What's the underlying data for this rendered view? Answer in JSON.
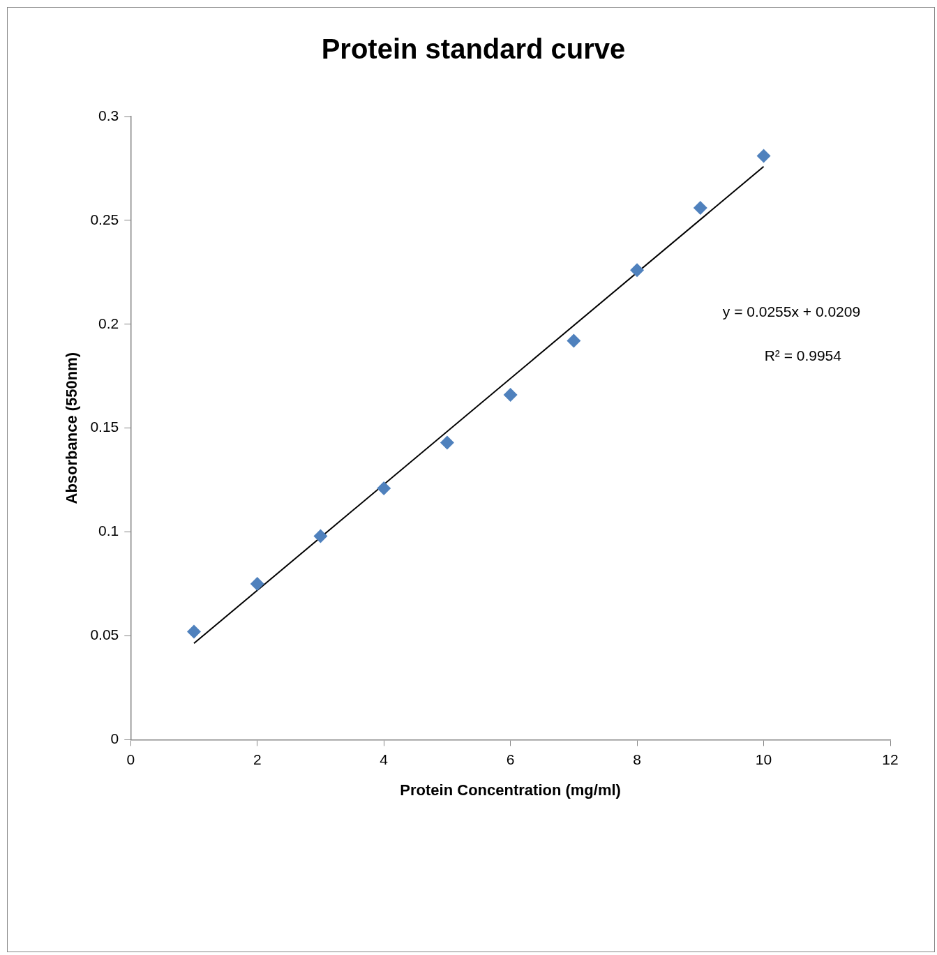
{
  "chart_data": {
    "type": "scatter",
    "title": "Protein standard curve",
    "xlabel": "Protein Concentration (mg/ml)",
    "ylabel": "Absorbance (550nm)",
    "x": [
      1,
      2,
      3,
      4,
      5,
      6,
      7,
      8,
      9,
      10
    ],
    "series": [
      {
        "color": "#4f81bd",
        "values": [
          0.052,
          0.075,
          0.098,
          0.121,
          0.143,
          0.166,
          0.192,
          0.226,
          0.256,
          0.281
        ]
      },
      {
        "type": "line",
        "marker": "none",
        "color": "#000000",
        "x": [
          1,
          10
        ],
        "values": [
          0.0464,
          0.2759
        ]
      }
    ],
    "xlim": [
      0,
      12
    ],
    "xticks": [
      0,
      2,
      4,
      6,
      8,
      10,
      12
    ],
    "ylim": [
      0,
      0.3
    ],
    "yticks": [
      0,
      0.05,
      0.1,
      0.15,
      0.2,
      0.25,
      0.3
    ],
    "grid": false,
    "legend": false,
    "marker": "diamond",
    "annotations": [
      "y = 0.0255x + 0.0209",
      "R² = 0.9954"
    ]
  }
}
